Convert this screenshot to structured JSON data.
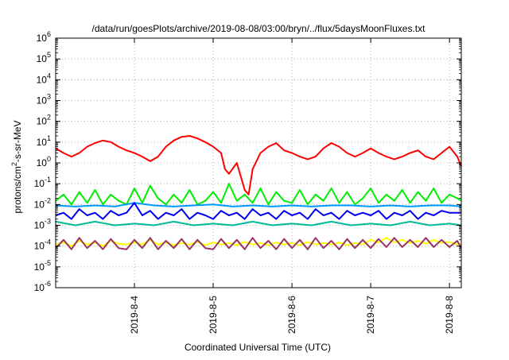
{
  "chart_data": {
    "type": "line",
    "title": "/data/run/goesPlots/archive/2019-08-08/03:00/bryn/../flux/5daysMoonFluxes.txt",
    "xlabel": "Coordinated Universal Time (UTC)",
    "ylabel": {
      "base": "protons/cm",
      "sup": "2",
      "rest": "-s-sr-MeV"
    },
    "y_scale": "log",
    "ylim": [
      1e-06,
      1000000.0
    ],
    "xlim": [
      0.0,
      5.15
    ],
    "x_ticks": [
      {
        "x": 1.0,
        "label": "2019-8-4"
      },
      {
        "x": 2.0,
        "label": "2019-8-5"
      },
      {
        "x": 3.0,
        "label": "2019-8-6"
      },
      {
        "x": 4.0,
        "label": "2019-8-7"
      },
      {
        "x": 5.0,
        "label": "2019-8-8"
      }
    ],
    "y_ticks": [
      {
        "exp": -6,
        "label_base": "10",
        "label_exp": "-6"
      },
      {
        "exp": -5,
        "label_base": "10",
        "label_exp": "-5"
      },
      {
        "exp": -4,
        "label_base": "10",
        "label_exp": "-4"
      },
      {
        "exp": -3,
        "label_base": "10",
        "label_exp": "-3"
      },
      {
        "exp": -2,
        "label_base": "10",
        "label_exp": "-2"
      },
      {
        "exp": -1,
        "label_base": "10",
        "label_exp": "-1"
      },
      {
        "exp": 0,
        "label_base": "10",
        "label_exp": "0"
      },
      {
        "exp": 1,
        "label_base": "10",
        "label_exp": "1"
      },
      {
        "exp": 2,
        "label_base": "10",
        "label_exp": "2"
      },
      {
        "exp": 3,
        "label_base": "10",
        "label_exp": "3"
      },
      {
        "exp": 4,
        "label_base": "10",
        "label_exp": "4"
      },
      {
        "exp": 5,
        "label_base": "10",
        "label_exp": "5"
      },
      {
        "exp": 6,
        "label_base": "10",
        "label_exp": "6"
      }
    ],
    "grid": true,
    "legend": "none",
    "series": [
      {
        "color": "#ff0000",
        "x": [
          0.0,
          0.1,
          0.2,
          0.3,
          0.4,
          0.5,
          0.6,
          0.7,
          0.8,
          0.9,
          1.0,
          1.1,
          1.2,
          1.3,
          1.4,
          1.5,
          1.6,
          1.7,
          1.8,
          1.9,
          2.0,
          2.1,
          2.15,
          2.2,
          2.3,
          2.4,
          2.45,
          2.5,
          2.6,
          2.7,
          2.8,
          2.9,
          3.0,
          3.1,
          3.2,
          3.3,
          3.4,
          3.5,
          3.6,
          3.7,
          3.8,
          3.9,
          4.0,
          4.1,
          4.2,
          4.3,
          4.4,
          4.5,
          4.6,
          4.7,
          4.8,
          4.9,
          5.0,
          5.1,
          5.15
        ],
        "y": [
          5,
          3,
          2,
          3,
          6,
          9,
          12,
          10,
          6,
          4,
          3,
          2,
          1.2,
          2,
          6,
          12,
          18,
          20,
          15,
          10,
          6,
          3,
          0.5,
          0.3,
          1,
          0.05,
          0.03,
          0.5,
          3,
          6,
          9,
          4,
          3,
          2,
          1.5,
          2,
          5,
          9,
          6,
          3,
          2,
          3,
          5,
          3,
          2,
          1.5,
          2,
          3,
          4,
          2,
          1.5,
          3,
          6,
          2,
          0.7
        ]
      },
      {
        "color": "#00ee00",
        "x": [
          0.0,
          0.1,
          0.2,
          0.3,
          0.4,
          0.5,
          0.6,
          0.7,
          0.8,
          0.9,
          1.0,
          1.1,
          1.2,
          1.3,
          1.4,
          1.5,
          1.6,
          1.7,
          1.8,
          1.9,
          2.0,
          2.1,
          2.2,
          2.3,
          2.4,
          2.5,
          2.6,
          2.7,
          2.8,
          2.9,
          3.0,
          3.1,
          3.2,
          3.3,
          3.4,
          3.5,
          3.6,
          3.7,
          3.8,
          3.9,
          4.0,
          4.1,
          4.2,
          4.3,
          4.4,
          4.5,
          4.6,
          4.7,
          4.8,
          4.9,
          5.0,
          5.1,
          5.15
        ],
        "y": [
          0.015,
          0.03,
          0.01,
          0.04,
          0.012,
          0.05,
          0.01,
          0.03,
          0.015,
          0.01,
          0.06,
          0.012,
          0.08,
          0.02,
          0.01,
          0.03,
          0.012,
          0.05,
          0.01,
          0.015,
          0.04,
          0.012,
          0.1,
          0.015,
          0.03,
          0.012,
          0.06,
          0.01,
          0.04,
          0.015,
          0.012,
          0.05,
          0.01,
          0.03,
          0.015,
          0.06,
          0.012,
          0.04,
          0.01,
          0.02,
          0.06,
          0.012,
          0.03,
          0.015,
          0.05,
          0.012,
          0.04,
          0.015,
          0.06,
          0.012,
          0.03,
          0.02,
          0.015
        ]
      },
      {
        "color": "#0099ff",
        "x": [
          0.0,
          0.25,
          0.5,
          0.75,
          1.0,
          1.25,
          1.5,
          1.75,
          2.0,
          2.25,
          2.5,
          2.75,
          3.0,
          3.25,
          3.5,
          3.75,
          4.0,
          4.25,
          4.5,
          4.75,
          5.0,
          5.15
        ],
        "y": [
          0.009,
          0.008,
          0.009,
          0.008,
          0.012,
          0.009,
          0.008,
          0.009,
          0.01,
          0.008,
          0.009,
          0.008,
          0.009,
          0.008,
          0.009,
          0.009,
          0.008,
          0.009,
          0.008,
          0.009,
          0.009,
          0.008
        ]
      },
      {
        "color": "#0000ee",
        "x": [
          0.0,
          0.1,
          0.2,
          0.3,
          0.4,
          0.5,
          0.6,
          0.7,
          0.8,
          0.9,
          1.0,
          1.1,
          1.2,
          1.3,
          1.4,
          1.5,
          1.6,
          1.7,
          1.8,
          1.9,
          2.0,
          2.1,
          2.2,
          2.3,
          2.4,
          2.5,
          2.6,
          2.7,
          2.8,
          2.9,
          3.0,
          3.1,
          3.2,
          3.3,
          3.4,
          3.5,
          3.6,
          3.7,
          3.8,
          3.9,
          4.0,
          4.1,
          4.2,
          4.3,
          4.4,
          4.5,
          4.6,
          4.7,
          4.8,
          4.9,
          5.0,
          5.1,
          5.15
        ],
        "y": [
          0.003,
          0.004,
          0.002,
          0.006,
          0.003,
          0.004,
          0.002,
          0.005,
          0.003,
          0.004,
          0.012,
          0.003,
          0.005,
          0.002,
          0.004,
          0.003,
          0.006,
          0.002,
          0.004,
          0.003,
          0.002,
          0.005,
          0.003,
          0.004,
          0.002,
          0.006,
          0.003,
          0.004,
          0.002,
          0.005,
          0.003,
          0.004,
          0.002,
          0.006,
          0.003,
          0.004,
          0.002,
          0.005,
          0.003,
          0.004,
          0.003,
          0.005,
          0.002,
          0.004,
          0.003,
          0.005,
          0.002,
          0.004,
          0.003,
          0.005,
          0.004,
          0.004,
          0.004
        ]
      },
      {
        "color": "#00bb99",
        "x": [
          0.0,
          0.25,
          0.5,
          0.75,
          1.0,
          1.25,
          1.5,
          1.75,
          2.0,
          2.25,
          2.5,
          2.75,
          3.0,
          3.25,
          3.5,
          3.75,
          4.0,
          4.25,
          4.5,
          4.75,
          5.0,
          5.15
        ],
        "y": [
          0.0015,
          0.001,
          0.0015,
          0.001,
          0.0012,
          0.001,
          0.0015,
          0.001,
          0.0012,
          0.001,
          0.0015,
          0.001,
          0.0012,
          0.001,
          0.0015,
          0.001,
          0.0012,
          0.001,
          0.0015,
          0.001,
          0.0012,
          0.001
        ]
      },
      {
        "color": "#ffff00",
        "x": [
          0.0,
          0.1,
          0.2,
          0.3,
          0.4,
          0.5,
          0.6,
          0.7,
          0.8,
          0.9,
          1.0,
          1.1,
          1.2,
          1.3,
          1.4,
          1.5,
          1.6,
          1.7,
          1.8,
          1.9,
          2.0,
          2.1,
          2.2,
          2.3,
          2.4,
          2.5,
          2.6,
          2.7,
          2.8,
          2.9,
          3.0,
          3.1,
          3.2,
          3.3,
          3.4,
          3.5,
          3.6,
          3.7,
          3.8,
          3.9,
          4.0,
          4.1,
          4.2,
          4.3,
          4.4,
          4.5,
          4.6,
          4.7,
          4.8,
          4.9,
          5.0,
          5.1,
          5.15
        ],
        "y": [
          0.00012,
          0.00015,
          0.0001,
          0.00018,
          0.00012,
          0.00015,
          0.0001,
          0.00018,
          0.00013,
          0.00012,
          0.00015,
          0.00012,
          0.0002,
          0.00012,
          0.00015,
          0.00011,
          0.00014,
          0.00012,
          0.00016,
          0.00011,
          0.00015,
          0.00012,
          0.00014,
          0.00011,
          0.00016,
          0.00012,
          0.00014,
          0.00011,
          0.00015,
          0.00012,
          0.00014,
          0.00011,
          0.00016,
          0.00012,
          0.00014,
          0.00012,
          0.00015,
          0.00011,
          0.00014,
          0.00012,
          0.0002,
          0.00015,
          0.00025,
          0.00015,
          0.0002,
          0.00014,
          0.00018,
          0.00013,
          0.0002,
          0.00014,
          0.00016,
          0.00012,
          0.00013
        ]
      },
      {
        "color": "#993366",
        "x": [
          0.0,
          0.1,
          0.2,
          0.3,
          0.4,
          0.5,
          0.6,
          0.7,
          0.8,
          0.9,
          1.0,
          1.1,
          1.2,
          1.3,
          1.4,
          1.5,
          1.6,
          1.7,
          1.8,
          1.9,
          2.0,
          2.1,
          2.2,
          2.3,
          2.4,
          2.5,
          2.6,
          2.7,
          2.8,
          2.9,
          3.0,
          3.1,
          3.2,
          3.3,
          3.4,
          3.5,
          3.6,
          3.7,
          3.8,
          3.9,
          4.0,
          4.1,
          4.2,
          4.3,
          4.4,
          4.5,
          4.6,
          4.7,
          4.8,
          4.9,
          5.0,
          5.1,
          5.15
        ],
        "y": [
          8e-05,
          0.0002,
          7e-05,
          0.00025,
          8e-05,
          0.00018,
          7e-05,
          0.00022,
          8e-05,
          7e-05,
          0.0002,
          8e-05,
          0.00025,
          7e-05,
          0.00018,
          8e-05,
          0.00022,
          7e-05,
          0.0002,
          8e-05,
          7e-05,
          0.00022,
          8e-05,
          0.0002,
          7e-05,
          0.00025,
          8e-05,
          0.00018,
          7e-05,
          0.00022,
          8e-05,
          0.0002,
          7e-05,
          0.00025,
          8e-05,
          0.00018,
          7e-05,
          0.00022,
          8e-05,
          0.0002,
          8e-05,
          0.00022,
          9e-05,
          0.00025,
          9e-05,
          0.0002,
          9e-05,
          0.00025,
          9e-05,
          0.0002,
          9e-05,
          0.00018,
          8e-05
        ]
      }
    ]
  }
}
